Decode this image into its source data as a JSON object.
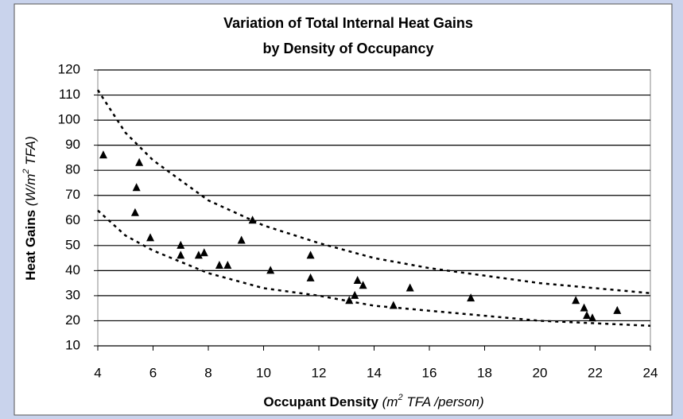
{
  "chart_data": {
    "type": "scatter",
    "title": [
      "Variation of Total Internal Heat Gains",
      "by Density of Occupancy"
    ],
    "xlabel_parts": [
      "Occupant Density",
      "(m",
      "2",
      "TFA /person)"
    ],
    "ylabel_parts": [
      "Heat Gains",
      "(W/m",
      "2",
      "TFA)"
    ],
    "xlim": [
      4,
      24
    ],
    "xticks": [
      4,
      6,
      8,
      10,
      12,
      14,
      16,
      18,
      20,
      22,
      24
    ],
    "ylim": [
      10,
      120
    ],
    "yticks": [
      10,
      20,
      30,
      40,
      50,
      60,
      70,
      80,
      90,
      100,
      110,
      120
    ],
    "grid": true,
    "series": [
      {
        "color": "#000000",
        "x": [
          4.2,
          5.5,
          5.4,
          5.35,
          5.9,
          7.0,
          7.0,
          7.65,
          7.85,
          8.4,
          8.7,
          9.2,
          9.6,
          10.25,
          11.7,
          11.7,
          13.1,
          13.3,
          13.4,
          13.6,
          14.7,
          15.3,
          17.5,
          21.3,
          21.6,
          21.7,
          21.9,
          22.8
        ],
        "values": [
          86,
          83,
          73,
          63,
          53,
          50,
          46,
          46,
          47,
          42,
          42,
          52,
          60,
          40,
          46,
          37,
          28,
          30,
          36,
          34,
          26,
          33,
          29,
          28,
          25,
          22,
          21,
          24
        ]
      }
    ],
    "trendlines": [
      {
        "color": "#000000",
        "x": [
          4,
          5,
          6,
          8,
          10,
          12,
          14,
          16,
          18,
          20,
          22,
          24
        ],
        "values": [
          112,
          95,
          84,
          68,
          58,
          51,
          45,
          41,
          38,
          35,
          33,
          31
        ]
      },
      {
        "color": "#000000",
        "x": [
          4,
          5,
          6,
          8,
          10,
          12,
          14,
          16,
          18,
          20,
          22,
          24
        ],
        "values": [
          64,
          54,
          48,
          39,
          33,
          30,
          26,
          24,
          22,
          20,
          19,
          18
        ]
      }
    ]
  }
}
